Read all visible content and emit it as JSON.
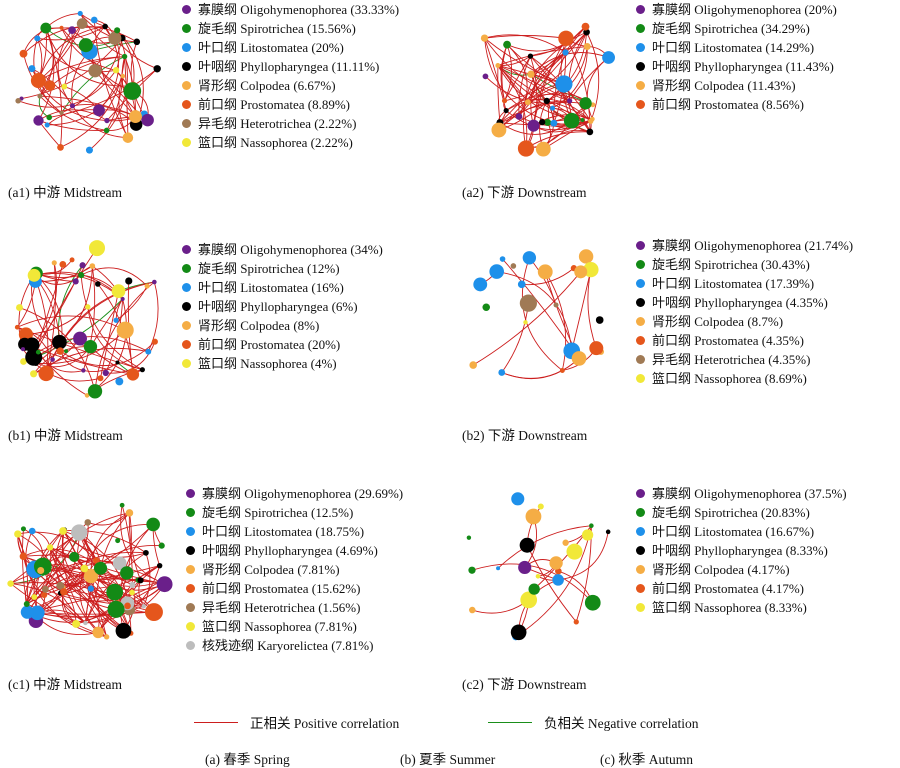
{
  "colors": {
    "Oligohymenophorea": "#6a1f8a",
    "Spirotrichea": "#138a16",
    "Litostomatea": "#1e90ea",
    "Phyllopharyngea": "#000000",
    "Colpodea": "#f5ad45",
    "Prostomatea": "#e5561c",
    "Heterotrichea": "#a07a55",
    "Nassophorea": "#f1e838",
    "Karyorelictea": "#bdbdbd",
    "positive": "#cc1e1e",
    "negative": "#1a8f1a"
  },
  "panels": [
    {
      "id": "a1",
      "caption": "(a1) 中游 Midstream",
      "legend": [
        {
          "cls": "Oligohymenophorea",
          "text": "寡膜纲 Oligohymenophorea (33.33%)"
        },
        {
          "cls": "Spirotrichea",
          "text": "旋毛纲 Spirotrichea (15.56%)"
        },
        {
          "cls": "Litostomatea",
          "text": "叶口纲 Litostomatea (20%)"
        },
        {
          "cls": "Phyllopharyngea",
          "text": "叶咽纲 Phyllopharyngea (11.11%)"
        },
        {
          "cls": "Colpodea",
          "text": "肾形纲 Colpodea (6.67%)"
        },
        {
          "cls": "Prostomatea",
          "text": "前口纲 Prostomatea (8.89%)"
        },
        {
          "cls": "Heterotrichea",
          "text": "异毛纲 Heterotrichea (2.22%)"
        },
        {
          "cls": "Nassophorea",
          "text": "篮口纲 Nassophorea (2.22%)"
        }
      ]
    },
    {
      "id": "a2",
      "caption": "(a2) 下游 Downstream",
      "legend": [
        {
          "cls": "Oligohymenophorea",
          "text": "寡膜纲 Oligohymenophorea (20%)"
        },
        {
          "cls": "Spirotrichea",
          "text": "旋毛纲 Spirotrichea (34.29%)"
        },
        {
          "cls": "Litostomatea",
          "text": "叶口纲 Litostomatea (14.29%)"
        },
        {
          "cls": "Phyllopharyngea",
          "text": "叶咽纲 Phyllopharyngea (11.43%)"
        },
        {
          "cls": "Colpodea",
          "text": "肾形纲 Colpodea (11.43%)"
        },
        {
          "cls": "Prostomatea",
          "text": "前口纲 Prostomatea (8.56%)"
        }
      ]
    },
    {
      "id": "b1",
      "caption": "(b1) 中游 Midstream",
      "legend": [
        {
          "cls": "Oligohymenophorea",
          "text": "寡膜纲 Oligohymenophorea (34%)"
        },
        {
          "cls": "Spirotrichea",
          "text": "旋毛纲 Spirotrichea (12%)"
        },
        {
          "cls": "Litostomatea",
          "text": "叶口纲 Litostomatea (16%)"
        },
        {
          "cls": "Phyllopharyngea",
          "text": "叶咽纲 Phyllopharyngea (6%)"
        },
        {
          "cls": "Colpodea",
          "text": "肾形纲 Colpodea (8%)"
        },
        {
          "cls": "Prostomatea",
          "text": "前口纲 Prostomatea (20%)"
        },
        {
          "cls": "Nassophorea",
          "text": "篮口纲 Nassophorea (4%)"
        }
      ]
    },
    {
      "id": "b2",
      "caption": "(b2) 下游 Downstream",
      "legend": [
        {
          "cls": "Oligohymenophorea",
          "text": "寡膜纲 Oligohymenophorea (21.74%)"
        },
        {
          "cls": "Spirotrichea",
          "text": "旋毛纲 Spirotrichea (30.43%)"
        },
        {
          "cls": "Litostomatea",
          "text": "叶口纲 Litostomatea (17.39%)"
        },
        {
          "cls": "Phyllopharyngea",
          "text": "叶咽纲 Phyllopharyngea (4.35%)"
        },
        {
          "cls": "Colpodea",
          "text": "肾形纲 Colpodea (8.7%)"
        },
        {
          "cls": "Prostomatea",
          "text": "前口纲 Prostomatea (4.35%)"
        },
        {
          "cls": "Heterotrichea",
          "text": "异毛纲 Heterotrichea (4.35%)"
        },
        {
          "cls": "Nassophorea",
          "text": "篮口纲 Nassophorea (8.69%)"
        }
      ]
    },
    {
      "id": "c1",
      "caption": "(c1) 中游 Midstream",
      "legend": [
        {
          "cls": "Oligohymenophorea",
          "text": "寡膜纲 Oligohymenophorea (29.69%)"
        },
        {
          "cls": "Spirotrichea",
          "text": "旋毛纲 Spirotrichea (12.5%)"
        },
        {
          "cls": "Litostomatea",
          "text": "叶口纲 Litostomatea (18.75%)"
        },
        {
          "cls": "Phyllopharyngea",
          "text": "叶咽纲 Phyllopharyngea (4.69%)"
        },
        {
          "cls": "Colpodea",
          "text": "肾形纲 Colpodea (7.81%)"
        },
        {
          "cls": "Prostomatea",
          "text": "前口纲 Prostomatea (15.62%)"
        },
        {
          "cls": "Heterotrichea",
          "text": "异毛纲 Heterotrichea (1.56%)"
        },
        {
          "cls": "Nassophorea",
          "text": "篮口纲 Nassophorea (7.81%)"
        },
        {
          "cls": "Karyorelictea",
          "text": "核残迹纲 Karyorelictea (7.81%)"
        }
      ]
    },
    {
      "id": "c2",
      "caption": "(c2) 下游 Downstream",
      "legend": [
        {
          "cls": "Oligohymenophorea",
          "text": "寡膜纲 Oligohymenophorea (37.5%)"
        },
        {
          "cls": "Spirotrichea",
          "text": "旋毛纲 Spirotrichea (20.83%)"
        },
        {
          "cls": "Litostomatea",
          "text": "叶口纲 Litostomatea (16.67%)"
        },
        {
          "cls": "Phyllopharyngea",
          "text": "叶咽纲 Phyllopharyngea (8.33%)"
        },
        {
          "cls": "Colpodea",
          "text": "肾形纲 Colpodea (4.17%)"
        },
        {
          "cls": "Prostomatea",
          "text": "前口纲 Prostomatea (4.17%)"
        },
        {
          "cls": "Nassophorea",
          "text": "篮口纲 Nassophorea (8.33%)"
        }
      ]
    }
  ],
  "correlation_legend": {
    "positive": "正相关 Positive correlation",
    "negative": "负相关 Negative correlation"
  },
  "seasons": [
    "(a) 春季 Spring",
    "(b) 夏季 Summer",
    "(c) 秋季 Autumn"
  ]
}
